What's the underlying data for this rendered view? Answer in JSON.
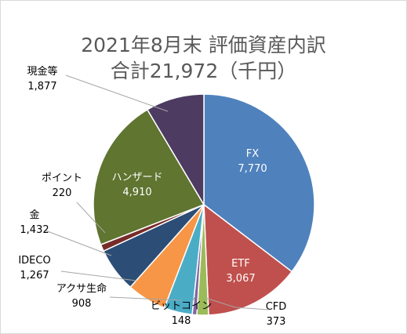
{
  "chart_data": {
    "type": "pie",
    "title": "2021年8月末 評価資産内訳",
    "subtitle": "合計21,972（千円）",
    "categories": [
      "FX",
      "ETF",
      "CFD",
      "ビットコイン",
      "アクサ生命",
      "IDECO",
      "金",
      "ポイント",
      "ハンザード",
      "現金等"
    ],
    "values": [
      7770,
      3067,
      373,
      148,
      908,
      1267,
      1432,
      220,
      4910,
      1877
    ],
    "labels": [
      "7,770",
      "3,067",
      "373",
      "148",
      "908",
      "1,267",
      "1,432",
      "220",
      "4,910",
      "1,877"
    ],
    "colors": [
      "#4f81bd",
      "#c0504d",
      "#9bbb59",
      "#8064a2",
      "#4bacc6",
      "#f79646",
      "#2c4d75",
      "#772c2a",
      "#5f7530",
      "#4d3b62"
    ],
    "legend": "none",
    "start_angle": "12 o'clock",
    "direction": "clockwise"
  }
}
